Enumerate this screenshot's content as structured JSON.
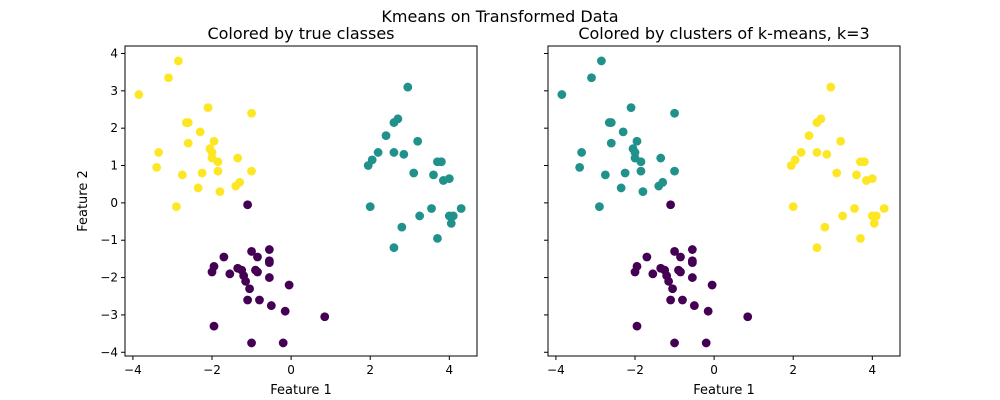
{
  "suptitle": "Kmeans on Transformed Data",
  "colors": {
    "class_0": "#440154",
    "class_1": "#21918c",
    "class_2": "#fde725",
    "frame": "#000000",
    "background": "#ffffff"
  },
  "chart_data": [
    {
      "type": "scatter",
      "title": "Colored by true classes",
      "xlabel": "Feature 1",
      "ylabel": "Feature 2",
      "xlim": [
        -4.2,
        4.7
      ],
      "ylim": [
        -4.1,
        4.2
      ],
      "xticks": [
        -4,
        -2,
        0,
        2,
        4
      ],
      "yticks": [
        -4,
        -3,
        -2,
        -1,
        0,
        1,
        2,
        3,
        4
      ],
      "xtick_labels": [
        "−4",
        "−2",
        "0",
        "2",
        "4"
      ],
      "ytick_labels": [
        "−4",
        "−3",
        "−2",
        "−1",
        "0",
        "1",
        "2",
        "3",
        "4"
      ],
      "show_yticklabels": true,
      "grid": false,
      "series": [
        {
          "color_key": "class_0",
          "points": [
            [
              -1.1,
              -0.05
            ],
            [
              -1.7,
              -1.45
            ],
            [
              -2.0,
              -1.85
            ],
            [
              -1.95,
              -1.7
            ],
            [
              -1.55,
              -1.9
            ],
            [
              -1.35,
              -1.75
            ],
            [
              -1.25,
              -1.8
            ],
            [
              -1.2,
              -1.95
            ],
            [
              -1.0,
              -1.3
            ],
            [
              -0.85,
              -1.45
            ],
            [
              -0.9,
              -1.8
            ],
            [
              -0.85,
              -1.85
            ],
            [
              -0.55,
              -1.25
            ],
            [
              -0.55,
              -1.55
            ],
            [
              -0.55,
              -1.6
            ],
            [
              -1.15,
              -2.1
            ],
            [
              -1.05,
              -2.3
            ],
            [
              -0.55,
              -2.0
            ],
            [
              -0.05,
              -2.2
            ],
            [
              -1.1,
              -2.6
            ],
            [
              -0.8,
              -2.6
            ],
            [
              -0.5,
              -2.75
            ],
            [
              -0.15,
              -2.9
            ],
            [
              -1.95,
              -3.3
            ],
            [
              -1.0,
              -3.75
            ],
            [
              -0.2,
              -3.75
            ],
            [
              0.85,
              -3.05
            ]
          ]
        },
        {
          "color_key": "class_1",
          "points": [
            [
              2.95,
              3.1
            ],
            [
              2.6,
              2.15
            ],
            [
              2.7,
              2.25
            ],
            [
              2.4,
              1.8
            ],
            [
              3.2,
              1.65
            ],
            [
              2.2,
              1.35
            ],
            [
              2.6,
              1.35
            ],
            [
              2.85,
              1.3
            ],
            [
              1.95,
              1.0
            ],
            [
              2.05,
              1.15
            ],
            [
              3.7,
              1.1
            ],
            [
              3.8,
              1.1
            ],
            [
              3.1,
              0.8
            ],
            [
              3.6,
              0.75
            ],
            [
              3.85,
              0.6
            ],
            [
              4.0,
              0.65
            ],
            [
              2.0,
              -0.1
            ],
            [
              3.25,
              -0.35
            ],
            [
              3.55,
              -0.15
            ],
            [
              4.0,
              -0.35
            ],
            [
              4.1,
              -0.35
            ],
            [
              4.3,
              -0.15
            ],
            [
              2.8,
              -0.65
            ],
            [
              4.05,
              -0.55
            ],
            [
              3.7,
              -0.95
            ],
            [
              2.6,
              -1.2
            ]
          ]
        },
        {
          "color_key": "class_2",
          "points": [
            [
              -2.85,
              3.8
            ],
            [
              -3.1,
              3.35
            ],
            [
              -3.85,
              2.9
            ],
            [
              -2.1,
              2.55
            ],
            [
              -2.6,
              2.15
            ],
            [
              -2.65,
              2.15
            ],
            [
              -1.0,
              2.4
            ],
            [
              -2.3,
              1.9
            ],
            [
              -1.95,
              1.65
            ],
            [
              -2.6,
              1.6
            ],
            [
              -3.35,
              1.35
            ],
            [
              -2.05,
              1.45
            ],
            [
              -2.0,
              1.35
            ],
            [
              -2.0,
              1.2
            ],
            [
              -1.85,
              1.1
            ],
            [
              -1.35,
              1.2
            ],
            [
              -3.4,
              0.95
            ],
            [
              -2.25,
              0.8
            ],
            [
              -1.85,
              0.85
            ],
            [
              -2.75,
              0.75
            ],
            [
              -1.0,
              0.85
            ],
            [
              -1.3,
              0.55
            ],
            [
              -1.4,
              0.45
            ],
            [
              -2.35,
              0.4
            ],
            [
              -1.8,
              0.3
            ],
            [
              -2.9,
              -0.1
            ]
          ]
        }
      ]
    },
    {
      "type": "scatter",
      "title": "Colored by clusters of k-means, k=3",
      "xlabel": "Feature 1",
      "ylabel": "",
      "xlim": [
        -4.2,
        4.7
      ],
      "ylim": [
        -4.1,
        4.2
      ],
      "xticks": [
        -4,
        -2,
        0,
        2,
        4
      ],
      "yticks": [
        -4,
        -3,
        -2,
        -1,
        0,
        1,
        2,
        3,
        4
      ],
      "xtick_labels": [
        "−4",
        "−2",
        "0",
        "2",
        "4"
      ],
      "ytick_labels": [],
      "show_yticklabels": false,
      "grid": false,
      "series": [
        {
          "color_key": "class_0",
          "points": [
            [
              -1.1,
              -0.05
            ],
            [
              -1.7,
              -1.45
            ],
            [
              -2.0,
              -1.85
            ],
            [
              -1.95,
              -1.7
            ],
            [
              -1.55,
              -1.9
            ],
            [
              -1.35,
              -1.75
            ],
            [
              -1.25,
              -1.8
            ],
            [
              -1.2,
              -1.95
            ],
            [
              -1.0,
              -1.3
            ],
            [
              -0.85,
              -1.45
            ],
            [
              -0.9,
              -1.8
            ],
            [
              -0.85,
              -1.85
            ],
            [
              -0.55,
              -1.25
            ],
            [
              -0.55,
              -1.55
            ],
            [
              -0.55,
              -1.6
            ],
            [
              -1.15,
              -2.1
            ],
            [
              -1.05,
              -2.3
            ],
            [
              -0.55,
              -2.0
            ],
            [
              -0.05,
              -2.2
            ],
            [
              -1.1,
              -2.6
            ],
            [
              -0.8,
              -2.6
            ],
            [
              -0.5,
              -2.75
            ],
            [
              -0.15,
              -2.9
            ],
            [
              -1.95,
              -3.3
            ],
            [
              -1.0,
              -3.75
            ],
            [
              -0.2,
              -3.75
            ],
            [
              0.85,
              -3.05
            ]
          ]
        },
        {
          "color_key": "class_2",
          "points": [
            [
              2.95,
              3.1
            ],
            [
              2.6,
              2.15
            ],
            [
              2.7,
              2.25
            ],
            [
              2.4,
              1.8
            ],
            [
              3.2,
              1.65
            ],
            [
              2.2,
              1.35
            ],
            [
              2.6,
              1.35
            ],
            [
              2.85,
              1.3
            ],
            [
              1.95,
              1.0
            ],
            [
              2.05,
              1.15
            ],
            [
              3.7,
              1.1
            ],
            [
              3.8,
              1.1
            ],
            [
              3.1,
              0.8
            ],
            [
              3.6,
              0.75
            ],
            [
              3.85,
              0.6
            ],
            [
              4.0,
              0.65
            ],
            [
              2.0,
              -0.1
            ],
            [
              3.25,
              -0.35
            ],
            [
              3.55,
              -0.15
            ],
            [
              4.0,
              -0.35
            ],
            [
              4.1,
              -0.35
            ],
            [
              4.3,
              -0.15
            ],
            [
              2.8,
              -0.65
            ],
            [
              4.05,
              -0.55
            ],
            [
              3.7,
              -0.95
            ],
            [
              2.6,
              -1.2
            ]
          ]
        },
        {
          "color_key": "class_1",
          "points": [
            [
              -2.85,
              3.8
            ],
            [
              -3.1,
              3.35
            ],
            [
              -3.85,
              2.9
            ],
            [
              -2.1,
              2.55
            ],
            [
              -2.6,
              2.15
            ],
            [
              -2.65,
              2.15
            ],
            [
              -1.0,
              2.4
            ],
            [
              -2.3,
              1.9
            ],
            [
              -1.95,
              1.65
            ],
            [
              -2.6,
              1.6
            ],
            [
              -3.35,
              1.35
            ],
            [
              -2.05,
              1.45
            ],
            [
              -2.0,
              1.35
            ],
            [
              -2.0,
              1.2
            ],
            [
              -1.85,
              1.1
            ],
            [
              -1.35,
              1.2
            ],
            [
              -3.4,
              0.95
            ],
            [
              -2.25,
              0.8
            ],
            [
              -1.85,
              0.85
            ],
            [
              -2.75,
              0.75
            ],
            [
              -1.0,
              0.85
            ],
            [
              -1.3,
              0.55
            ],
            [
              -1.4,
              0.45
            ],
            [
              -2.35,
              0.4
            ],
            [
              -1.8,
              0.3
            ],
            [
              -2.9,
              -0.1
            ]
          ]
        }
      ]
    }
  ]
}
